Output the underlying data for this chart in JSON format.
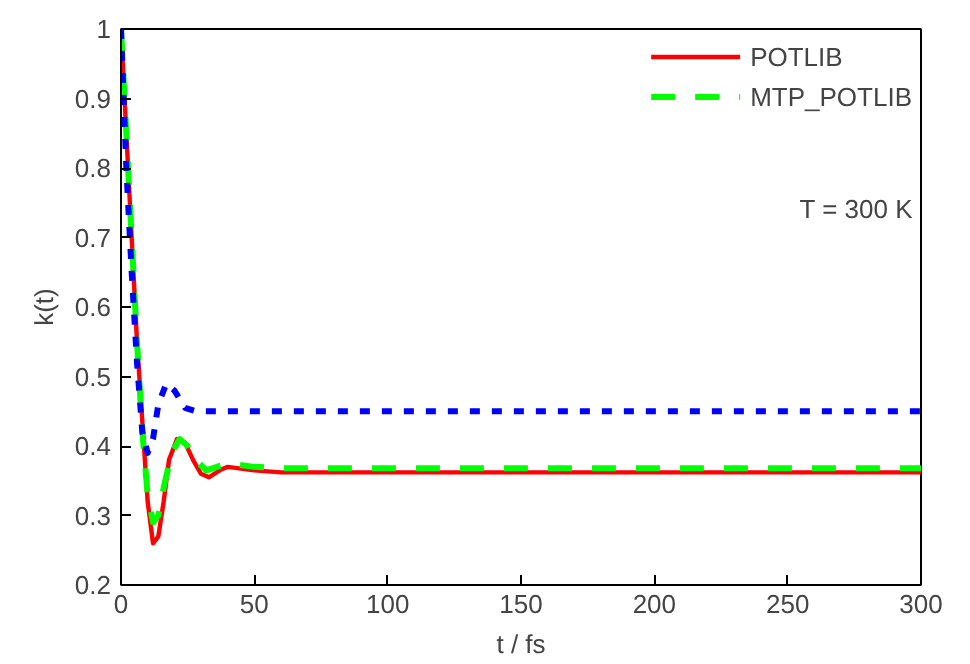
{
  "chart_data": {
    "type": "line",
    "xlabel": "t / fs",
    "ylabel": "k(t)",
    "xlim": [
      0,
      300
    ],
    "ylim": [
      0.2,
      1
    ],
    "xticks": [
      0,
      50,
      100,
      150,
      200,
      250,
      300
    ],
    "yticks": [
      0.2,
      0.3,
      0.4,
      0.5,
      0.6,
      0.7,
      0.8,
      0.9,
      1
    ],
    "grid": false,
    "legend": "top right",
    "annotations": [
      "T = 300 K"
    ],
    "series": [
      {
        "name": "POTLIB",
        "color": "#ff0000",
        "line_style": "solid",
        "x": [
          0,
          2,
          4,
          6,
          10,
          12,
          14,
          16,
          18,
          21,
          24,
          27,
          30,
          33,
          37,
          40,
          50,
          60,
          300
        ],
        "values": [
          1,
          0.85,
          0.7,
          0.55,
          0.32,
          0.26,
          0.27,
          0.32,
          0.38,
          0.41,
          0.405,
          0.38,
          0.36,
          0.355,
          0.365,
          0.37,
          0.365,
          0.362,
          0.362
        ]
      },
      {
        "name": "MTP_POTLIB",
        "color": "#00ff00",
        "line_style": "dashed",
        "x": [
          0,
          2,
          4,
          6,
          8,
          10,
          12,
          14,
          16,
          19,
          22,
          25,
          28,
          32,
          40,
          50,
          60,
          300
        ],
        "values": [
          1,
          0.85,
          0.7,
          0.55,
          0.42,
          0.33,
          0.29,
          0.3,
          0.34,
          0.39,
          0.41,
          0.4,
          0.38,
          0.365,
          0.375,
          0.37,
          0.368,
          0.368
        ]
      },
      {
        "color": "#0000ff",
        "line_style": "dotted",
        "x": [
          0,
          2,
          4,
          6,
          8,
          10,
          12,
          14,
          17,
          20,
          24,
          28,
          300
        ],
        "values": [
          1,
          0.8,
          0.65,
          0.52,
          0.42,
          0.39,
          0.41,
          0.46,
          0.49,
          0.48,
          0.455,
          0.45,
          0.45
        ]
      }
    ]
  }
}
